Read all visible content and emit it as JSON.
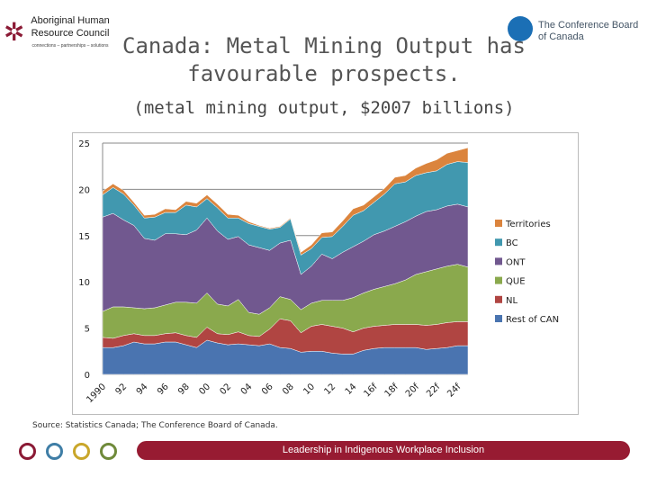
{
  "logos": {
    "left": "Aboriginal Human Resource Council",
    "left_tagline": "connections – partnerships – solutions",
    "right": "The Conference Board of Canada"
  },
  "title": "Canada: Metal Mining Output has favourable prospects.",
  "subtitle": "(metal mining output, $2007 billions)",
  "source": "Source: Statistics Canada; The Conference Board of Canada.",
  "footer": {
    "banner": "Leadership in Indigenous Workplace Inclusion",
    "ring_colors": [
      "#8b1a35",
      "#3f7ea6",
      "#c9a62a",
      "#6f8a3a"
    ]
  },
  "chart_data": {
    "type": "area",
    "stacked": true,
    "x": [
      1990,
      1991,
      1992,
      1993,
      1994,
      1995,
      1996,
      1997,
      1998,
      1999,
      2000,
      2001,
      2002,
      2003,
      2004,
      2005,
      2006,
      2007,
      2008,
      2009,
      2010,
      2011,
      2012,
      2013,
      2014,
      2015,
      2016,
      2017,
      2018,
      2019,
      2020,
      2021,
      2022,
      2023,
      2024,
      2025
    ],
    "x_tick_labels": [
      "1990",
      "92",
      "94",
      "96",
      "98",
      "00",
      "02",
      "04",
      "06",
      "08",
      "10",
      "12",
      "14",
      "16f",
      "18f",
      "20f",
      "22f",
      "24f"
    ],
    "ylim": [
      0,
      25
    ],
    "y_ticks": [
      "0",
      "5",
      "10",
      "15",
      "20",
      "25"
    ],
    "grid": true,
    "legend": "right",
    "series": [
      {
        "name": "Rest of CAN",
        "color": "#4a74b0",
        "values": [
          2.9,
          2.9,
          3.1,
          3.5,
          3.3,
          3.3,
          3.5,
          3.5,
          3.2,
          2.9,
          3.7,
          3.4,
          3.2,
          3.3,
          3.2,
          3.1,
          3.3,
          2.9,
          2.8,
          2.4,
          2.5,
          2.5,
          2.3,
          2.2,
          2.2,
          2.6,
          2.8,
          2.9,
          2.9,
          2.9,
          2.9,
          2.7,
          2.8,
          2.9,
          3.1,
          3.1
        ]
      },
      {
        "name": "NL",
        "color": "#b04542",
        "values": [
          1.1,
          1.0,
          1.1,
          0.9,
          0.9,
          0.9,
          0.9,
          1.0,
          1.0,
          1.1,
          1.4,
          1.0,
          1.1,
          1.3,
          1.0,
          1.0,
          1.6,
          3.1,
          3.0,
          2.1,
          2.7,
          2.9,
          2.9,
          2.8,
          2.4,
          2.4,
          2.4,
          2.4,
          2.5,
          2.5,
          2.5,
          2.6,
          2.6,
          2.7,
          2.6,
          2.6
        ]
      },
      {
        "name": "QUE",
        "color": "#8aa94d",
        "values": [
          2.8,
          3.4,
          3.1,
          2.8,
          2.9,
          3.0,
          3.1,
          3.3,
          3.6,
          3.7,
          3.7,
          3.2,
          3.1,
          3.5,
          2.5,
          2.4,
          2.3,
          2.4,
          2.3,
          2.5,
          2.5,
          2.6,
          2.8,
          3.0,
          3.7,
          3.8,
          4.0,
          4.2,
          4.4,
          4.8,
          5.4,
          5.8,
          6.0,
          6.1,
          6.2,
          5.9
        ]
      },
      {
        "name": "ONT",
        "color": "#71588f",
        "values": [
          10.2,
          10.1,
          9.4,
          8.9,
          7.6,
          7.3,
          7.7,
          7.4,
          7.3,
          7.9,
          8.1,
          7.9,
          7.2,
          6.8,
          7.3,
          7.2,
          6.2,
          5.8,
          6.4,
          3.8,
          4.0,
          5.0,
          4.5,
          5.2,
          5.5,
          5.6,
          5.9,
          6.0,
          6.2,
          6.3,
          6.3,
          6.5,
          6.4,
          6.5,
          6.5,
          6.5
        ]
      },
      {
        "name": "BC",
        "color": "#4198af",
        "values": [
          2.4,
          2.8,
          2.8,
          2.2,
          2.2,
          2.5,
          2.3,
          2.3,
          3.2,
          2.5,
          2.1,
          2.5,
          2.3,
          2.0,
          2.3,
          2.3,
          2.3,
          1.7,
          2.3,
          2.1,
          1.9,
          1.8,
          2.4,
          2.8,
          3.4,
          3.3,
          3.5,
          4.0,
          4.6,
          4.3,
          4.4,
          4.2,
          4.2,
          4.5,
          4.6,
          4.8
        ]
      },
      {
        "name": "Territories",
        "color": "#db843d",
        "values": [
          0.4,
          0.4,
          0.4,
          0.3,
          0.3,
          0.3,
          0.4,
          0.3,
          0.4,
          0.4,
          0.4,
          0.4,
          0.4,
          0.3,
          0.2,
          0.1,
          0.1,
          0.1,
          0.1,
          0.3,
          0.4,
          0.5,
          0.5,
          0.6,
          0.7,
          0.6,
          0.6,
          0.6,
          0.7,
          0.7,
          0.8,
          1.0,
          1.2,
          1.2,
          1.2,
          1.6
        ]
      }
    ]
  }
}
